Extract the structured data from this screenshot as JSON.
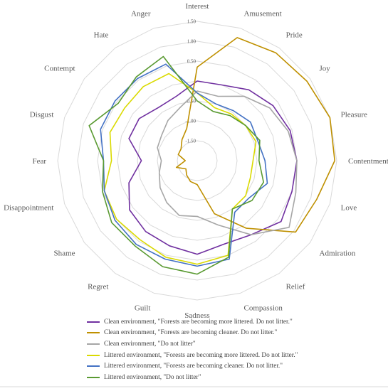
{
  "chart_data": {
    "type": "radar",
    "axes": [
      "Interest",
      "Amusement",
      "Pride",
      "Joy",
      "Pleasure",
      "Contentment",
      "Love",
      "Admiration",
      "Relief",
      "Compassion",
      "Sadness",
      "Guilt",
      "Regret",
      "Shame",
      "Disappointment",
      "Fear",
      "Disgust",
      "Contempt",
      "Hate",
      "Anger"
    ],
    "range": [
      -2.0,
      1.5
    ],
    "ticks": [
      1.5,
      1.0,
      0.5,
      0.0,
      -0.5,
      -1.0,
      -1.5
    ],
    "tick_labels": [
      "1.50",
      "1.00",
      "0.50",
      "",
      "-0.50",
      "-1.00",
      "-1.50"
    ],
    "grid": true,
    "legend_position": "bottom",
    "series": [
      {
        "name": "Clean environment,  \"Forests are becoming more littered. Do not litter.\"",
        "color": "#7030a0",
        "values": [
          0.0,
          0.0,
          0.2,
          0.35,
          0.45,
          0.5,
          0.5,
          0.6,
          0.3,
          0.2,
          0.35,
          0.25,
          0.2,
          0.1,
          -0.2,
          -0.6,
          -0.2,
          -0.2,
          -0.35,
          -0.3
        ]
      },
      {
        "name": "Clean environment,  \"Forests are becoming cleaner. Do not litter.\"",
        "color": "#bf9000",
        "values": [
          0.35,
          1.25,
          1.35,
          1.4,
          1.5,
          1.45,
          1.15,
          1.05,
          0.1,
          -0.6,
          -1.4,
          -1.45,
          -1.55,
          -1.65,
          -1.45,
          -1.7,
          -1.5,
          -1.5,
          -1.35,
          -1.15
        ]
      },
      {
        "name": "Clean environment,  \"Do not litter\"",
        "color": "#a6a6a6",
        "values": [
          -0.25,
          -0.3,
          0.0,
          0.25,
          0.4,
          0.5,
          0.6,
          0.85,
          0.3,
          -0.3,
          -0.6,
          -0.55,
          -0.7,
          -0.85,
          -1.0,
          -1.1,
          -0.95,
          -0.9,
          -0.75,
          -0.6
        ]
      },
      {
        "name": "Littered environment,  \"Forests are becoming more littered. Do not litter.\"",
        "color": "#dada00",
        "values": [
          -0.3,
          -0.6,
          -0.55,
          -0.5,
          -0.45,
          -0.6,
          -0.6,
          -0.5,
          -0.5,
          0.5,
          0.6,
          0.55,
          0.45,
          0.5,
          0.45,
          0.15,
          0.3,
          0.25,
          0.3,
          0.3
        ]
      },
      {
        "name": "Littered environment,  \"Forests are becoming cleaner. Do not litter.\"",
        "color": "#4472c4",
        "values": [
          -0.3,
          -0.5,
          -0.45,
          -0.35,
          -0.4,
          -0.3,
          -0.15,
          -0.4,
          -0.4,
          0.6,
          0.65,
          0.6,
          0.6,
          0.55,
          0.45,
          0.35,
          0.55,
          0.55,
          0.55,
          0.55
        ]
      },
      {
        "name": "Littered environment,  \"Do not litter\"",
        "color": "#5a9a32",
        "values": [
          -0.5,
          -0.7,
          -0.6,
          -0.5,
          -0.35,
          -0.45,
          -0.25,
          -0.3,
          -0.5,
          0.55,
          0.85,
          0.8,
          0.65,
          0.65,
          0.5,
          0.35,
          0.85,
          0.45,
          0.6,
          0.75
        ]
      }
    ]
  }
}
